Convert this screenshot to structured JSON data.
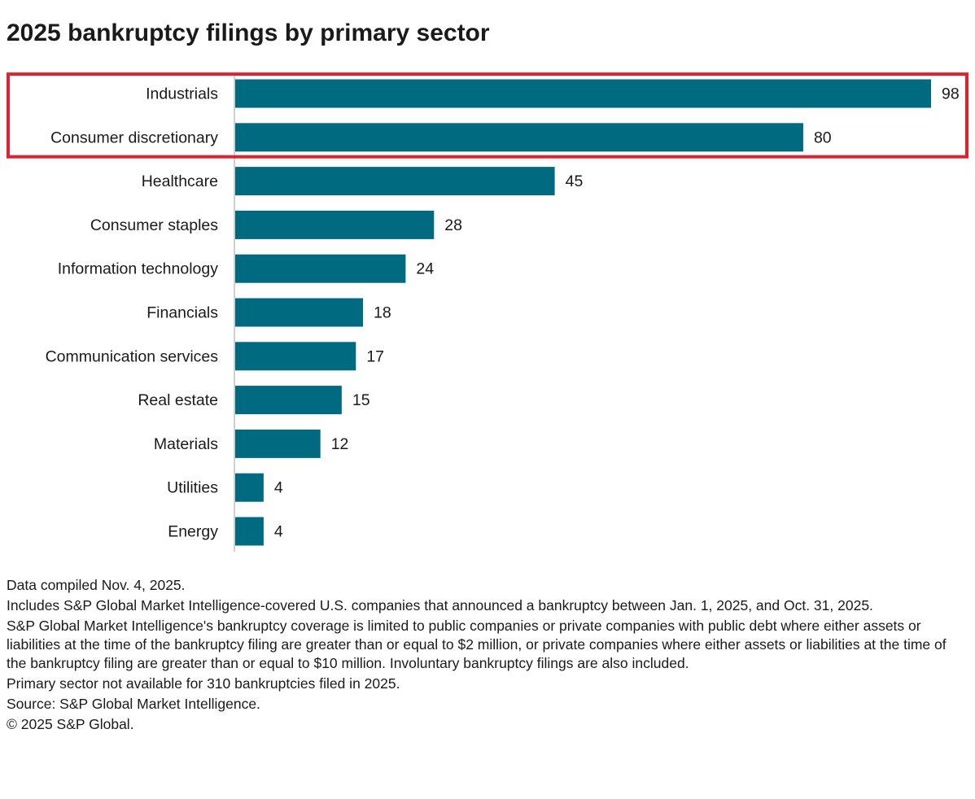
{
  "chart_data": {
    "type": "bar",
    "orientation": "horizontal",
    "title": "2025 bankruptcy filings by primary sector",
    "categories": [
      "Industrials",
      "Consumer discretionary",
      "Healthcare",
      "Consumer staples",
      "Information technology",
      "Financials",
      "Communication services",
      "Real estate",
      "Materials",
      "Utilities",
      "Energy"
    ],
    "values": [
      98,
      80,
      45,
      28,
      24,
      18,
      17,
      15,
      12,
      4,
      4
    ],
    "xlim": [
      0,
      98
    ],
    "grid": false,
    "legend": "none",
    "highlight": [
      "Industrials",
      "Consumer discretionary"
    ]
  },
  "colors": {
    "bar": "#006a80",
    "highlight_box": "#e0212e",
    "axis": "#bfbfbf",
    "text": "#1a1a1a"
  },
  "notes": [
    "Data compiled Nov. 4, 2025.",
    "Includes S&P Global Market Intelligence-covered U.S. companies that announced a bankruptcy between Jan. 1, 2025, and Oct. 31, 2025.",
    "S&P Global Market Intelligence's bankruptcy coverage is limited to public companies or private companies with public debt where either assets or liabilities at the time of the bankruptcy filing are greater than or equal to $2 million, or private companies where either assets or liabilities at the time of the bankruptcy filing are greater than or equal to $10 million. Involuntary bankruptcy filings are also included.",
    "Primary sector not available for 310 bankruptcies filed in 2025.",
    "Source: S&P Global Market Intelligence.",
    "© 2025 S&P Global."
  ]
}
